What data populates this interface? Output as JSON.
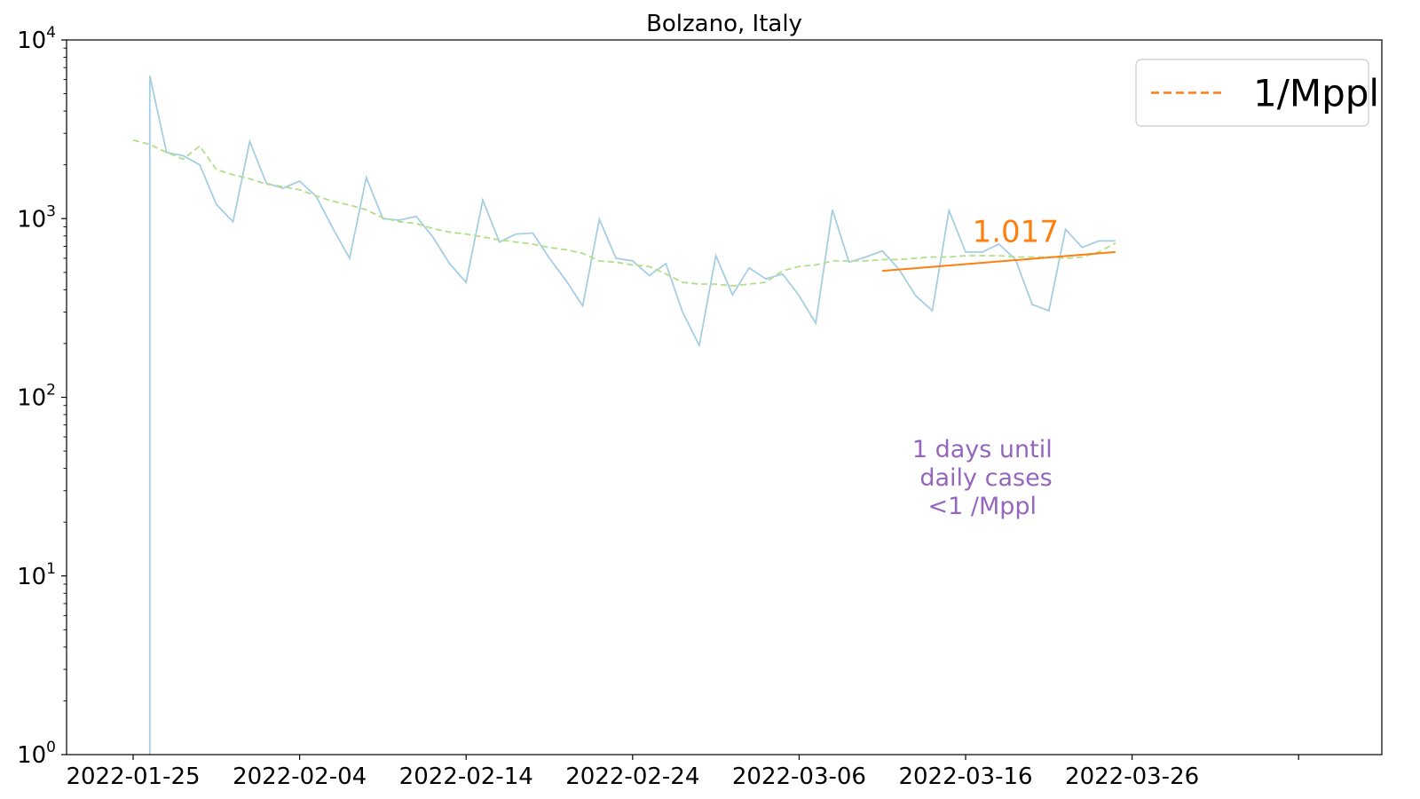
{
  "chart_data": {
    "type": "line",
    "title": "Bolzano, Italy",
    "xlabel": "",
    "ylabel": "",
    "y_scale": "log",
    "ylim": [
      1,
      10000
    ],
    "xlim": [
      "2022-01-21",
      "2022-04-10"
    ],
    "x_ticks": [
      "2022-01-25",
      "2022-02-04",
      "2022-02-14",
      "2022-02-24",
      "2022-03-06",
      "2022-03-16",
      "2022-03-26",
      "2022-04-05"
    ],
    "x_tick_labels": [
      "2022-01-25",
      "2022-02-04",
      "2022-02-14",
      "2022-02-24",
      "2022-03-06",
      "2022-03-16",
      "2022-03-26",
      ""
    ],
    "y_ticks": [
      1,
      10,
      100,
      1000,
      10000
    ],
    "y_tick_labels": [
      {
        "base": "10",
        "exp": "0"
      },
      {
        "base": "10",
        "exp": "1"
      },
      {
        "base": "10",
        "exp": "2"
      },
      {
        "base": "10",
        "exp": "3"
      },
      {
        "base": "10",
        "exp": "4"
      }
    ],
    "grid": false,
    "legend": {
      "placement": "top-right",
      "entries": [
        {
          "label": "1/Mppl",
          "color": "#ff7f0e",
          "style": "dashed"
        }
      ]
    },
    "series": [
      {
        "color": "#a6cee3",
        "style": "solid",
        "points": [
          [
            "2022-01-26",
            1
          ],
          [
            "2022-01-26",
            6300
          ],
          [
            "2022-01-27",
            2350
          ],
          [
            "2022-01-28",
            2250
          ],
          [
            "2022-01-29",
            2000
          ],
          [
            "2022-01-30",
            1200
          ],
          [
            "2022-01-31",
            960
          ],
          [
            "2022-02-01",
            2700
          ],
          [
            "2022-02-02",
            1580
          ],
          [
            "2022-02-03",
            1480
          ],
          [
            "2022-02-04",
            1620
          ],
          [
            "2022-02-05",
            1330
          ],
          [
            "2022-02-06",
            880
          ],
          [
            "2022-02-07",
            600
          ],
          [
            "2022-02-08",
            1700
          ],
          [
            "2022-02-09",
            1000
          ],
          [
            "2022-02-10",
            980
          ],
          [
            "2022-02-11",
            1030
          ],
          [
            "2022-02-12",
            790
          ],
          [
            "2022-02-13",
            560
          ],
          [
            "2022-02-14",
            440
          ],
          [
            "2022-02-15",
            1270
          ],
          [
            "2022-02-16",
            740
          ],
          [
            "2022-02-17",
            820
          ],
          [
            "2022-02-18",
            830
          ],
          [
            "2022-02-19",
            600
          ],
          [
            "2022-02-20",
            450
          ],
          [
            "2022-02-21",
            325
          ],
          [
            "2022-02-22",
            990
          ],
          [
            "2022-02-23",
            600
          ],
          [
            "2022-02-24",
            580
          ],
          [
            "2022-02-25",
            480
          ],
          [
            "2022-02-26",
            560
          ],
          [
            "2022-02-27",
            300
          ],
          [
            "2022-02-28",
            195
          ],
          [
            "2022-03-01",
            620
          ],
          [
            "2022-03-02",
            375
          ],
          [
            "2022-03-03",
            530
          ],
          [
            "2022-03-04",
            460
          ],
          [
            "2022-03-05",
            490
          ],
          [
            "2022-03-06",
            370
          ],
          [
            "2022-03-07",
            260
          ],
          [
            "2022-03-08",
            1120
          ],
          [
            "2022-03-09",
            570
          ],
          [
            "2022-03-10",
            610
          ],
          [
            "2022-03-11",
            660
          ],
          [
            "2022-03-12",
            520
          ],
          [
            "2022-03-13",
            370
          ],
          [
            "2022-03-14",
            305
          ],
          [
            "2022-03-15",
            1110
          ],
          [
            "2022-03-16",
            650
          ],
          [
            "2022-03-17",
            650
          ],
          [
            "2022-03-18",
            720
          ],
          [
            "2022-03-19",
            590
          ],
          [
            "2022-03-20",
            330
          ],
          [
            "2022-03-21",
            305
          ],
          [
            "2022-03-22",
            870
          ],
          [
            "2022-03-23",
            690
          ],
          [
            "2022-03-24",
            750
          ],
          [
            "2022-03-25",
            750
          ]
        ]
      },
      {
        "color": "#b2df8a",
        "style": "dashed",
        "points": [
          [
            "2022-01-25",
            2750
          ],
          [
            "2022-01-26",
            2600
          ],
          [
            "2022-01-27",
            2350
          ],
          [
            "2022-01-28",
            2150
          ],
          [
            "2022-01-29",
            2550
          ],
          [
            "2022-01-30",
            1880
          ],
          [
            "2022-01-31",
            1760
          ],
          [
            "2022-02-01",
            1670
          ],
          [
            "2022-02-02",
            1560
          ],
          [
            "2022-02-03",
            1510
          ],
          [
            "2022-02-04",
            1450
          ],
          [
            "2022-02-05",
            1340
          ],
          [
            "2022-02-06",
            1250
          ],
          [
            "2022-02-07",
            1190
          ],
          [
            "2022-02-08",
            1120
          ],
          [
            "2022-02-09",
            1010
          ],
          [
            "2022-02-10",
            960
          ],
          [
            "2022-02-11",
            940
          ],
          [
            "2022-02-12",
            880
          ],
          [
            "2022-02-13",
            840
          ],
          [
            "2022-02-14",
            820
          ],
          [
            "2022-02-15",
            790
          ],
          [
            "2022-02-16",
            760
          ],
          [
            "2022-02-17",
            740
          ],
          [
            "2022-02-18",
            720
          ],
          [
            "2022-02-19",
            690
          ],
          [
            "2022-02-20",
            670
          ],
          [
            "2022-02-21",
            640
          ],
          [
            "2022-02-22",
            580
          ],
          [
            "2022-02-23",
            570
          ],
          [
            "2022-02-24",
            550
          ],
          [
            "2022-02-25",
            540
          ],
          [
            "2022-02-26",
            490
          ],
          [
            "2022-02-27",
            440
          ],
          [
            "2022-02-28",
            430
          ],
          [
            "2022-03-01",
            430
          ],
          [
            "2022-03-02",
            420
          ],
          [
            "2022-03-03",
            430
          ],
          [
            "2022-03-04",
            440
          ],
          [
            "2022-03-05",
            510
          ],
          [
            "2022-03-06",
            540
          ],
          [
            "2022-03-07",
            550
          ],
          [
            "2022-03-08",
            580
          ],
          [
            "2022-03-09",
            580
          ],
          [
            "2022-03-10",
            580
          ],
          [
            "2022-03-11",
            590
          ],
          [
            "2022-03-12",
            590
          ],
          [
            "2022-03-13",
            600
          ],
          [
            "2022-03-14",
            610
          ],
          [
            "2022-03-15",
            610
          ],
          [
            "2022-03-16",
            620
          ],
          [
            "2022-03-17",
            620
          ],
          [
            "2022-03-18",
            620
          ],
          [
            "2022-03-19",
            610
          ],
          [
            "2022-03-20",
            610
          ],
          [
            "2022-03-21",
            610
          ],
          [
            "2022-03-22",
            600
          ],
          [
            "2022-03-23",
            610
          ],
          [
            "2022-03-24",
            650
          ],
          [
            "2022-03-25",
            730
          ]
        ]
      },
      {
        "color": "#ff7f0e",
        "style": "solid",
        "points": [
          [
            "2022-03-11",
            510
          ],
          [
            "2022-03-25",
            650
          ]
        ]
      }
    ],
    "annotations": [
      {
        "text": "1.017",
        "color": "#ff7f0e",
        "x": "2022-03-19",
        "y": 740
      },
      {
        "lines": [
          "1 days until",
          " daily cases",
          "<1 /Mppl"
        ],
        "color": "#9467bd",
        "x": "2022-03-17",
        "y": 32
      }
    ]
  }
}
